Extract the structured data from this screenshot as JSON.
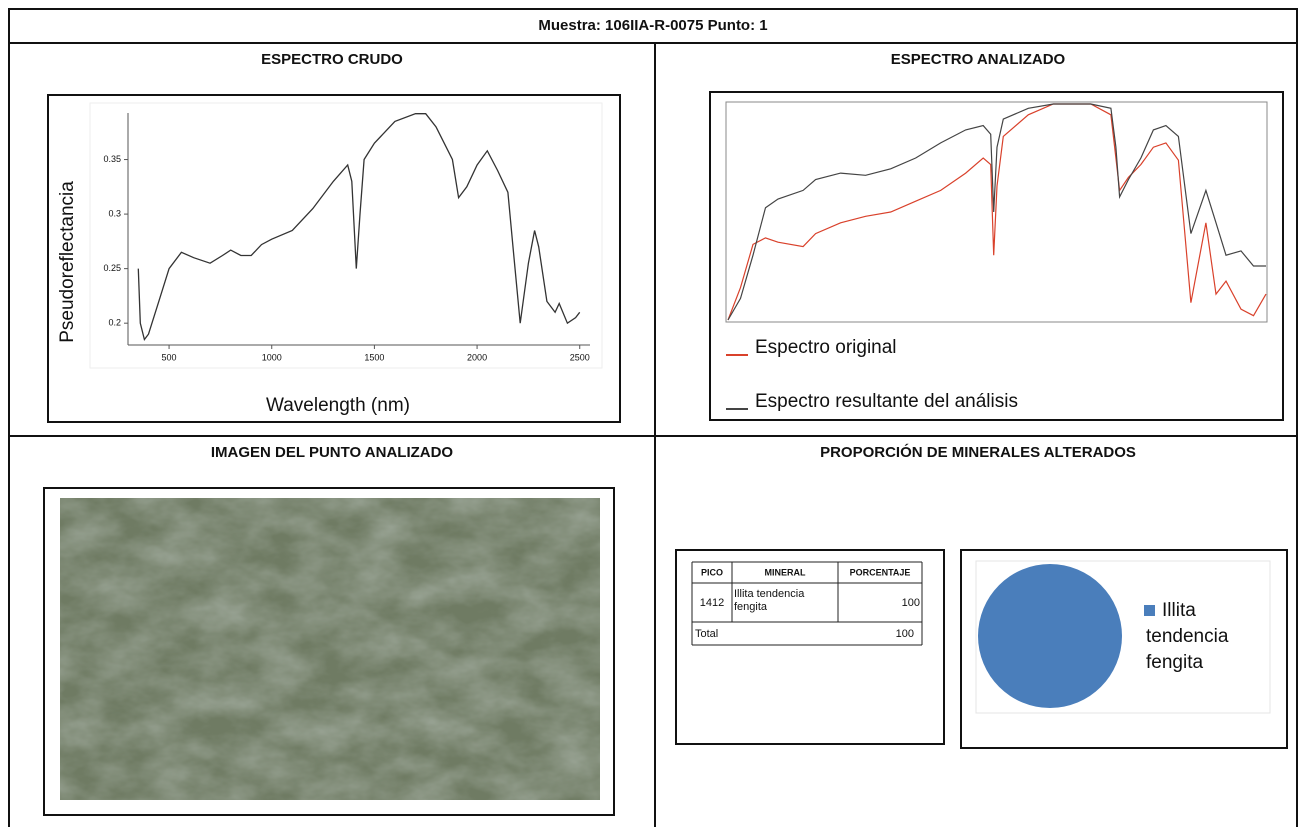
{
  "header": {
    "title": "Muestra: 106IIA-R-0075 Punto: 1"
  },
  "sections": [
    "ESPECTRO CRUDO",
    "ESPECTRO ANALIZADO",
    "IMAGEN DEL PUNTO ANALIZADO",
    "PROPORCIÓN DE MINERALES ALTERADOS"
  ],
  "table": {
    "header": [
      "PICO",
      "MINERAL",
      "PORCENTAJE"
    ],
    "rows": [
      [
        "1412",
        "Illita tendencia fengita",
        "100"
      ]
    ],
    "total": [
      "Total",
      "100"
    ]
  },
  "chart_data": [
    {
      "type": "line",
      "y_label": "Pseudoreflectancia",
      "x_label": "Wavelength (nm)",
      "color": "#333333",
      "x": [
        350,
        360,
        380,
        400,
        450,
        500,
        560,
        620,
        700,
        760,
        800,
        850,
        900,
        950,
        1000,
        1100,
        1200,
        1300,
        1370,
        1390,
        1412,
        1430,
        1450,
        1500,
        1600,
        1700,
        1750,
        1800,
        1880,
        1910,
        1950,
        2000,
        2050,
        2100,
        2150,
        2180,
        2210,
        2250,
        2280,
        2300,
        2340,
        2380,
        2400,
        2440,
        2480,
        2500
      ],
      "values": [
        0.25,
        0.2,
        0.185,
        0.19,
        0.22,
        0.25,
        0.265,
        0.26,
        0.255,
        0.262,
        0.267,
        0.262,
        0.262,
        0.272,
        0.277,
        0.285,
        0.305,
        0.33,
        0.345,
        0.33,
        0.25,
        0.3,
        0.35,
        0.365,
        0.385,
        0.392,
        0.392,
        0.38,
        0.35,
        0.315,
        0.325,
        0.345,
        0.358,
        0.34,
        0.32,
        0.26,
        0.2,
        0.255,
        0.285,
        0.27,
        0.22,
        0.21,
        0.218,
        0.2,
        0.205,
        0.21
      ],
      "xlim": [
        300,
        2550
      ],
      "ylim": [
        0.18,
        0.4
      ],
      "xticks": [
        500,
        1000,
        1500,
        2000,
        2500
      ],
      "yticks": [
        0.2,
        0.25,
        0.3,
        0.35
      ]
    },
    {
      "type": "line",
      "xlim": [
        350,
        2500
      ],
      "ylim": [
        0,
        1
      ],
      "x": [
        350,
        400,
        450,
        500,
        550,
        650,
        700,
        800,
        900,
        1000,
        1100,
        1200,
        1300,
        1370,
        1400,
        1412,
        1425,
        1450,
        1550,
        1650,
        1800,
        1880,
        1900,
        1915,
        1950,
        2000,
        2050,
        2100,
        2150,
        2200,
        2260,
        2300,
        2340,
        2400,
        2450,
        2500
      ],
      "series": [
        {
          "name": "Espectro original",
          "color": "#d9412b",
          "values": [
            0,
            0.15,
            0.35,
            0.38,
            0.36,
            0.34,
            0.4,
            0.45,
            0.48,
            0.5,
            0.55,
            0.6,
            0.68,
            0.75,
            0.72,
            0.3,
            0.62,
            0.85,
            0.95,
            1,
            1,
            0.95,
            0.75,
            0.6,
            0.66,
            0.72,
            0.8,
            0.82,
            0.74,
            0.08,
            0.45,
            0.12,
            0.18,
            0.05,
            0.02,
            0.12
          ]
        },
        {
          "name": "Espectro resultante del análisis",
          "color": "#444444",
          "values": [
            0,
            0.1,
            0.3,
            0.52,
            0.56,
            0.6,
            0.65,
            0.68,
            0.67,
            0.7,
            0.75,
            0.82,
            0.88,
            0.9,
            0.86,
            0.5,
            0.8,
            0.93,
            0.98,
            1,
            1,
            0.98,
            0.8,
            0.57,
            0.65,
            0.75,
            0.88,
            0.9,
            0.85,
            0.4,
            0.6,
            0.45,
            0.3,
            0.32,
            0.25,
            0.25
          ]
        }
      ]
    },
    {
      "type": "pie",
      "categories": [
        "Illita tendencia fengita"
      ],
      "values": [
        100
      ],
      "colors": [
        "#4a7ebb"
      ]
    }
  ]
}
